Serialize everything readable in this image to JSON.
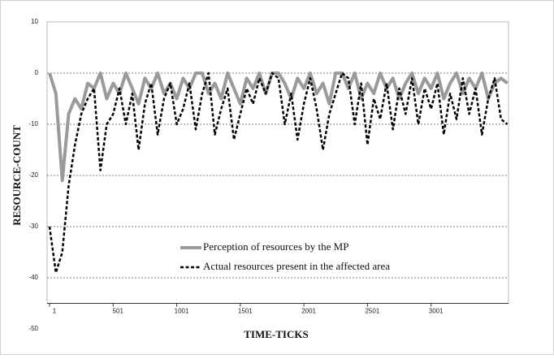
{
  "chart_data": {
    "type": "line",
    "x_label": "TIME-TICKS",
    "y_label": "RESOURCE-COUNT",
    "x": [
      1,
      51,
      101,
      151,
      201,
      251,
      301,
      351,
      401,
      451,
      501,
      551,
      601,
      651,
      701,
      751,
      801,
      851,
      901,
      951,
      1001,
      1051,
      1101,
      1151,
      1201,
      1251,
      1301,
      1351,
      1401,
      1451,
      1501,
      1551,
      1601,
      1651,
      1701,
      1751,
      1801,
      1851,
      1901,
      1951,
      2001,
      2051,
      2101,
      2151,
      2201,
      2251,
      2301,
      2351,
      2401,
      2451,
      2501,
      2551,
      2601,
      2651,
      2701,
      2751,
      2801,
      2851,
      2901,
      2951,
      3001,
      3051,
      3101,
      3151,
      3201,
      3251,
      3301,
      3351,
      3401,
      3451,
      3501,
      3551,
      3601
    ],
    "series": [
      {
        "name": "Perception of resources by the MP",
        "color": "#9a9a9a",
        "dash": false,
        "values": [
          0,
          -4,
          -21,
          -8,
          -5,
          -7,
          -2,
          -3,
          0,
          -5,
          -2,
          -4,
          0,
          -3,
          -6,
          -1,
          -3,
          0,
          -4,
          -2,
          -5,
          -1,
          -3,
          0,
          0,
          -4,
          -2,
          -5,
          0,
          -3,
          -6,
          -1,
          -3,
          0,
          -4,
          0,
          0,
          -2,
          -5,
          -1,
          -3,
          0,
          -4,
          -2,
          -6,
          0,
          0,
          -3,
          0,
          -5,
          -2,
          -4,
          0,
          -3,
          -1,
          -5,
          -2,
          0,
          -4,
          -1,
          -3,
          0,
          -5,
          -2,
          0,
          -4,
          -1,
          -3,
          0,
          -5,
          -2,
          -1,
          -2
        ]
      },
      {
        "name": "Actual resources present in the affected area",
        "color": "#000000",
        "dash": true,
        "values": [
          -30,
          -39,
          -35,
          -22,
          -14,
          -8,
          -5,
          -3,
          -19,
          -10,
          -8,
          -3,
          -10,
          -4,
          -15,
          -6,
          -2,
          -12,
          -5,
          -2,
          -10,
          -7,
          -2,
          -11,
          -4,
          0,
          -12,
          -7,
          -3,
          -13,
          -8,
          -3,
          -6,
          -1,
          -4,
          0,
          -1,
          -10,
          -4,
          -13,
          -6,
          -1,
          -7,
          -15,
          -8,
          -4,
          0,
          -1,
          -10,
          -2,
          -14,
          -5,
          -9,
          -2,
          -11,
          -3,
          -8,
          -1,
          -10,
          -3,
          -7,
          -2,
          -12,
          -4,
          -9,
          -1,
          -8,
          -3,
          -12,
          -5,
          -1,
          -9,
          -10
        ]
      }
    ],
    "xlim": [
      1,
      3610
    ],
    "xticks": [
      1,
      501,
      1001,
      1501,
      2001,
      2501,
      3001
    ],
    "ylim": [
      -50,
      10
    ],
    "yticks": [
      10,
      0,
      -10,
      -20,
      -30,
      -40,
      -50
    ],
    "x_axis_at": -45,
    "grid": true,
    "legend": "lower center"
  }
}
